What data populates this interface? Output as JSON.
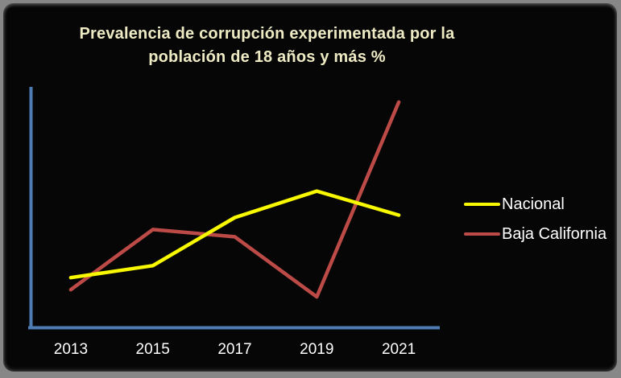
{
  "window": {
    "background_color": "#060606",
    "frame_border_color": "#878787"
  },
  "title": {
    "line1": "Prevalencia de corrupción experimentada por la",
    "line2": "población de 18 años y más %",
    "color": "#EEEBC4"
  },
  "axis": {
    "color": "#4E7DB5",
    "label_color": "#FFFFFF"
  },
  "legend": {
    "items": [
      {
        "label": "Nacional",
        "color": "#F8F800"
      },
      {
        "label": "Baja California",
        "color": "#BC4A47"
      }
    ]
  },
  "chart_data": {
    "type": "line",
    "title": "Prevalencia de corrupción experimentada por la población de 18 años y más %",
    "categories": [
      "2013",
      "2015",
      "2017",
      "2019",
      "2021"
    ],
    "series": [
      {
        "name": "Nacional",
        "color": "#F8F800",
        "values": [
          12.1,
          12.6,
          14.6,
          15.7,
          14.7
        ]
      },
      {
        "name": "Baja California",
        "color": "#BC4A47",
        "values": [
          11.6,
          14.1,
          13.8,
          11.3,
          19.4
        ]
      }
    ],
    "xlabel": "",
    "ylabel": "",
    "ylim": [
      10,
      20
    ],
    "y_axis_tick_labels_visible": false,
    "values_estimated_from_pixels": true,
    "grid": false,
    "legend_position": "right",
    "background": "#060606"
  }
}
